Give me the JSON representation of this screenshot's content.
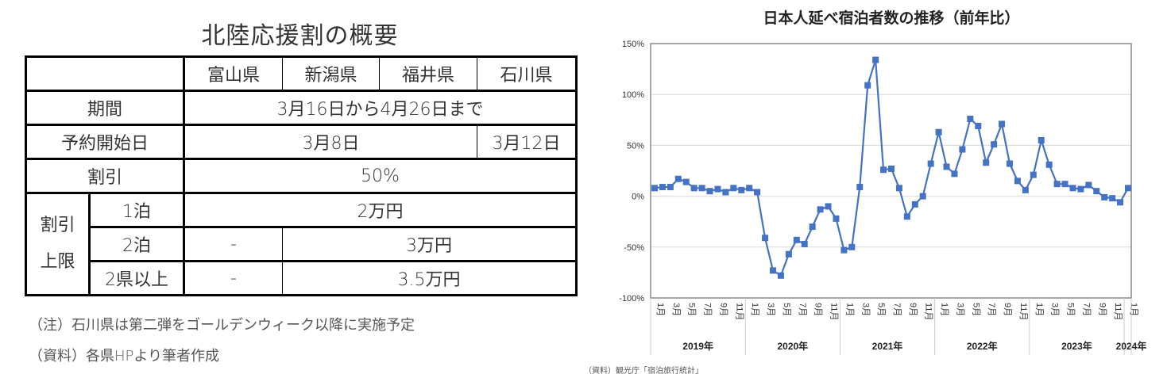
{
  "left_panel": {
    "title": "北陸応援割の概要",
    "table": {
      "header": [
        "",
        "富山県",
        "新潟県",
        "福井県",
        "石川県"
      ],
      "rows": {
        "period": {
          "label": "期間",
          "value": "3月16日から4月26日まで"
        },
        "booking_start": {
          "label": "予約開始日",
          "value_first3": "3月8日",
          "value_ishikawa": "3月12日"
        },
        "discount": {
          "label": "割引",
          "value": "50%"
        },
        "limit": {
          "label_line1": "割引",
          "label_line2": "上限",
          "one_night": {
            "label": "1泊",
            "value": "2万円"
          },
          "two_nights": {
            "label": "2泊",
            "toyama": "-",
            "others": "3万円"
          },
          "multi_pref": {
            "label": "2県以上",
            "toyama": "-",
            "others": "3.5万円"
          }
        }
      }
    },
    "note": "（注）石川県は第二弾をゴールデンウィーク以降に実施予定",
    "source": "（資料）各県HPより筆者作成"
  },
  "right_panel": {
    "source": "（資料）観光庁「宿泊旅行統計」"
  },
  "chart_data": {
    "type": "line",
    "title": "日本人延べ宿泊者数の推移（前年比）",
    "xlabel": "",
    "ylabel": "",
    "ylim": [
      -100,
      150
    ],
    "yticks": [
      150,
      100,
      50,
      0,
      -50,
      -100
    ],
    "ytick_labels": [
      "150%",
      "100%",
      "50%",
      "0%",
      "-50%",
      "-100%"
    ],
    "grid": true,
    "legend": null,
    "series_color": "#4472C4",
    "month_tick_labels": [
      "1月",
      "3月",
      "5月",
      "7月",
      "9月",
      "11月"
    ],
    "year_groups": [
      {
        "label": "2019年",
        "months": 12
      },
      {
        "label": "2020年",
        "months": 12
      },
      {
        "label": "2021年",
        "months": 12
      },
      {
        "label": "2022年",
        "months": 12
      },
      {
        "label": "2023年",
        "months": 12
      },
      {
        "label": "2024年",
        "months": 1
      }
    ],
    "x": [
      "2019-01",
      "2019-02",
      "2019-03",
      "2019-04",
      "2019-05",
      "2019-06",
      "2019-07",
      "2019-08",
      "2019-09",
      "2019-10",
      "2019-11",
      "2019-12",
      "2020-01",
      "2020-02",
      "2020-03",
      "2020-04",
      "2020-05",
      "2020-06",
      "2020-07",
      "2020-08",
      "2020-09",
      "2020-10",
      "2020-11",
      "2020-12",
      "2021-01",
      "2021-02",
      "2021-03",
      "2021-04",
      "2021-05",
      "2021-06",
      "2021-07",
      "2021-08",
      "2021-09",
      "2021-10",
      "2021-11",
      "2021-12",
      "2022-01",
      "2022-02",
      "2022-03",
      "2022-04",
      "2022-05",
      "2022-06",
      "2022-07",
      "2022-08",
      "2022-09",
      "2022-10",
      "2022-11",
      "2022-12",
      "2023-01",
      "2023-02",
      "2023-03",
      "2023-04",
      "2023-05",
      "2023-06",
      "2023-07",
      "2023-08",
      "2023-09",
      "2023-10",
      "2023-11",
      "2023-12",
      "2024-01"
    ],
    "series": [
      {
        "name": "日本人延べ宿泊者数 前年比(%)",
        "values": [
          8,
          9,
          9,
          17,
          14,
          8,
          8,
          5,
          7,
          4,
          8,
          6,
          8,
          4,
          -41,
          -73,
          -78,
          -57,
          -43,
          -47,
          -30,
          -13,
          -10,
          -22,
          -53,
          -50,
          9,
          109,
          134,
          26,
          27,
          8,
          -20,
          -8,
          0,
          32,
          63,
          29,
          22,
          46,
          76,
          69,
          33,
          51,
          71,
          32,
          15,
          6,
          21,
          55,
          31,
          12,
          12,
          8,
          7,
          11,
          5,
          -1,
          -2,
          -6,
          8
        ]
      }
    ]
  }
}
